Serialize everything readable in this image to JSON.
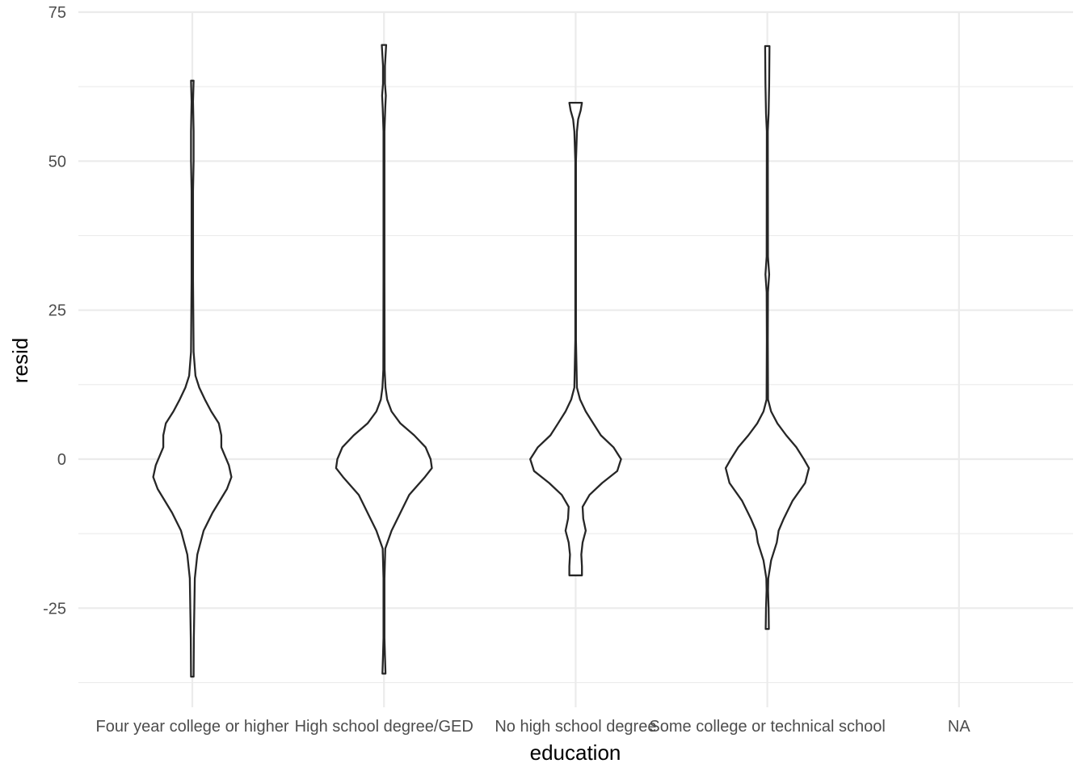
{
  "chart_data": {
    "type": "violin",
    "xlabel": "education",
    "ylabel": "resid",
    "categories": [
      "Four year college or higher",
      "High school degree/GED",
      "No high school degree",
      "Some college or technical school",
      "NA"
    ],
    "ylim": [
      -38.5,
      75
    ],
    "yticks": [
      -25,
      0,
      25,
      50,
      75
    ],
    "grid": true,
    "series": [
      {
        "category": "Four year college or higher",
        "profile": [
          [
            -36.5,
            0.02
          ],
          [
            -30,
            0.025
          ],
          [
            -20,
            0.04
          ],
          [
            -16,
            0.08
          ],
          [
            -12,
            0.18
          ],
          [
            -9,
            0.32
          ],
          [
            -5,
            0.55
          ],
          [
            -3,
            0.62
          ],
          [
            -1,
            0.58
          ],
          [
            2,
            0.46
          ],
          [
            4,
            0.46
          ],
          [
            6,
            0.42
          ],
          [
            8,
            0.3
          ],
          [
            10,
            0.2
          ],
          [
            12,
            0.11
          ],
          [
            14,
            0.05
          ],
          [
            18,
            0.02
          ],
          [
            30,
            0.012
          ],
          [
            45,
            0.012
          ],
          [
            50,
            0.02
          ],
          [
            55,
            0.02
          ],
          [
            60,
            0.012
          ],
          [
            63.5,
            0.02
          ]
        ]
      },
      {
        "category": "High school degree/GED",
        "profile": [
          [
            -36,
            0.025
          ],
          [
            -33,
            0.015
          ],
          [
            -30,
            0.008
          ],
          [
            -20,
            0.008
          ],
          [
            -15,
            0.02
          ],
          [
            -12,
            0.12
          ],
          [
            -9,
            0.26
          ],
          [
            -6,
            0.4
          ],
          [
            -3,
            0.65
          ],
          [
            -1.5,
            0.76
          ],
          [
            0,
            0.74
          ],
          [
            2,
            0.66
          ],
          [
            4,
            0.48
          ],
          [
            6,
            0.26
          ],
          [
            8,
            0.12
          ],
          [
            10,
            0.05
          ],
          [
            12,
            0.025
          ],
          [
            15,
            0.01
          ],
          [
            30,
            0.008
          ],
          [
            55,
            0.008
          ],
          [
            59,
            0.02
          ],
          [
            61,
            0.03
          ],
          [
            63,
            0.015
          ],
          [
            66,
            0.015
          ],
          [
            69.5,
            0.035
          ]
        ]
      },
      {
        "category": "No high school degree",
        "profile": [
          [
            -19.5,
            0.1
          ],
          [
            -18,
            0.1
          ],
          [
            -16,
            0.09
          ],
          [
            -14,
            0.11
          ],
          [
            -12,
            0.16
          ],
          [
            -10,
            0.12
          ],
          [
            -8,
            0.11
          ],
          [
            -6,
            0.22
          ],
          [
            -4,
            0.42
          ],
          [
            -2,
            0.66
          ],
          [
            0,
            0.72
          ],
          [
            2,
            0.6
          ],
          [
            4,
            0.4
          ],
          [
            6,
            0.28
          ],
          [
            8,
            0.16
          ],
          [
            10,
            0.07
          ],
          [
            12,
            0.02
          ],
          [
            20,
            0.005
          ],
          [
            50,
            0.005
          ],
          [
            55,
            0.02
          ],
          [
            57,
            0.04
          ],
          [
            58.5,
            0.08
          ],
          [
            59.8,
            0.1
          ]
        ]
      },
      {
        "category": "Some college or technical school",
        "profile": [
          [
            -28.5,
            0.025
          ],
          [
            -25,
            0.02
          ],
          [
            -22,
            0.012
          ],
          [
            -20,
            0.015
          ],
          [
            -17,
            0.06
          ],
          [
            -14,
            0.15
          ],
          [
            -12,
            0.18
          ],
          [
            -10,
            0.26
          ],
          [
            -7,
            0.4
          ],
          [
            -4,
            0.6
          ],
          [
            -1.5,
            0.66
          ],
          [
            0,
            0.58
          ],
          [
            2,
            0.46
          ],
          [
            4,
            0.3
          ],
          [
            6,
            0.16
          ],
          [
            8,
            0.06
          ],
          [
            10,
            0.012
          ],
          [
            20,
            0.008
          ],
          [
            28,
            0.01
          ],
          [
            31,
            0.03
          ],
          [
            34,
            0.01
          ],
          [
            55,
            0.008
          ],
          [
            58,
            0.02
          ],
          [
            63,
            0.03
          ],
          [
            69.3,
            0.035
          ]
        ]
      }
    ]
  }
}
